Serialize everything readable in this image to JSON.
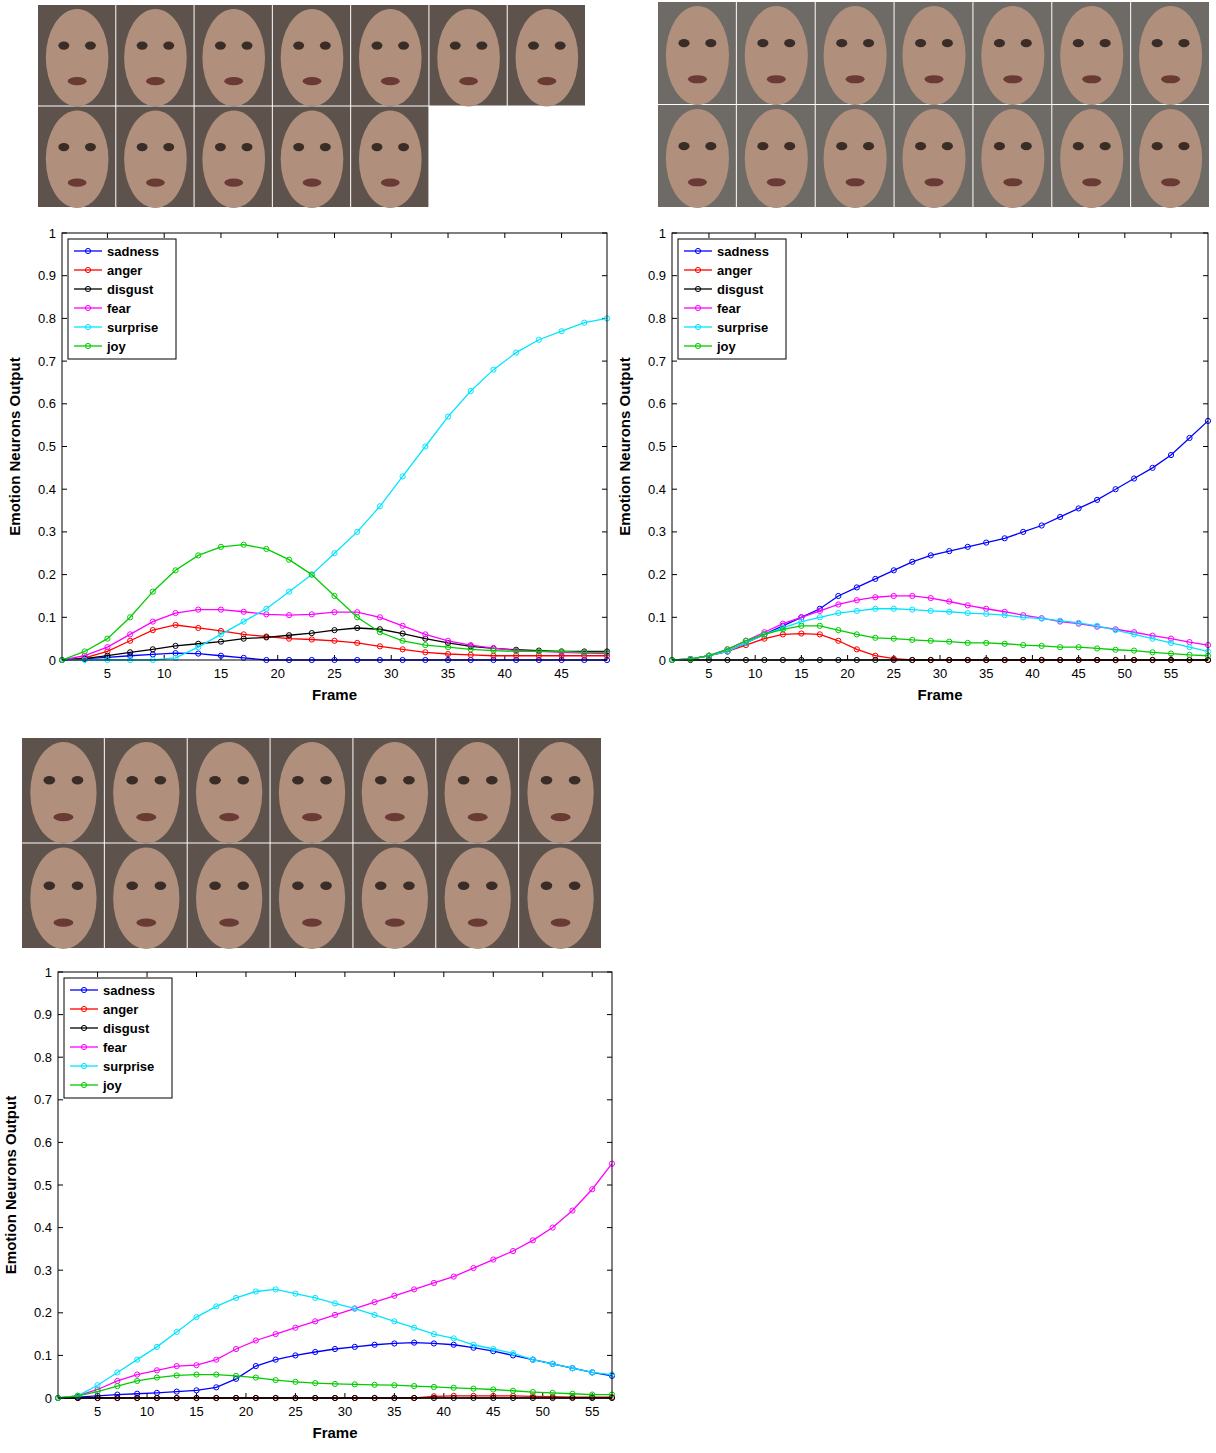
{
  "chart_data": [
    {
      "type": "line",
      "x_label": "Frame",
      "y_label": "Emotion Neurons Output",
      "legend": "upper left",
      "grid": false,
      "marker": "circle",
      "xlim": [
        1,
        49
      ],
      "ylim": [
        0,
        1
      ],
      "xticks": [
        5,
        10,
        15,
        20,
        25,
        30,
        35,
        40,
        45
      ],
      "yticks": [
        0,
        0.1,
        0.2,
        0.3,
        0.4,
        0.5,
        0.6,
        0.7,
        0.8,
        0.9,
        1
      ],
      "x": [
        1,
        3,
        5,
        7,
        9,
        11,
        13,
        15,
        17,
        19,
        21,
        23,
        25,
        27,
        29,
        31,
        33,
        35,
        37,
        39,
        41,
        43,
        45,
        47,
        49
      ],
      "series": [
        {
          "name": "sadness",
          "color": "#0000ff",
          "values": [
            0,
            0.003,
            0.006,
            0.01,
            0.013,
            0.016,
            0.015,
            0.01,
            0.005,
            0,
            0,
            0,
            0,
            0,
            0,
            0,
            0,
            0,
            0,
            0,
            0,
            0,
            0,
            0,
            0
          ]
        },
        {
          "name": "anger",
          "color": "#ff0000",
          "values": [
            0,
            0.005,
            0.02,
            0.045,
            0.07,
            0.082,
            0.075,
            0.068,
            0.06,
            0.055,
            0.05,
            0.048,
            0.045,
            0.04,
            0.032,
            0.025,
            0.018,
            0.014,
            0.012,
            0.01,
            0.01,
            0.01,
            0.01,
            0.01,
            0.01
          ]
        },
        {
          "name": "disgust",
          "color": "#000000",
          "values": [
            0,
            0.003,
            0.01,
            0.018,
            0.025,
            0.033,
            0.038,
            0.043,
            0.05,
            0.053,
            0.058,
            0.063,
            0.07,
            0.075,
            0.072,
            0.062,
            0.05,
            0.04,
            0.032,
            0.027,
            0.024,
            0.022,
            0.02,
            0.02,
            0.02
          ]
        },
        {
          "name": "fear",
          "color": "#ff00ff",
          "values": [
            0,
            0.01,
            0.03,
            0.06,
            0.09,
            0.11,
            0.118,
            0.118,
            0.113,
            0.107,
            0.105,
            0.107,
            0.112,
            0.112,
            0.1,
            0.08,
            0.06,
            0.045,
            0.035,
            0.028,
            0.022,
            0.02,
            0.018,
            0.016,
            0.015
          ]
        },
        {
          "name": "surprise",
          "color": "#00e5ff",
          "values": [
            0,
            0,
            0,
            0,
            0,
            0.005,
            0.03,
            0.06,
            0.09,
            0.12,
            0.16,
            0.2,
            0.25,
            0.3,
            0.36,
            0.43,
            0.5,
            0.57,
            0.63,
            0.68,
            0.72,
            0.75,
            0.77,
            0.79,
            0.8
          ]
        },
        {
          "name": "joy",
          "color": "#00cc00",
          "values": [
            0,
            0.02,
            0.05,
            0.1,
            0.16,
            0.21,
            0.245,
            0.265,
            0.27,
            0.26,
            0.235,
            0.2,
            0.15,
            0.1,
            0.065,
            0.045,
            0.035,
            0.03,
            0.025,
            0.022,
            0.02,
            0.02,
            0.02,
            0.018,
            0.018
          ]
        }
      ]
    },
    {
      "type": "line",
      "x_label": "Frame",
      "y_label": "Emotion Neurons Output",
      "legend": "upper left",
      "grid": false,
      "marker": "circle",
      "xlim": [
        1,
        59
      ],
      "ylim": [
        0,
        1
      ],
      "xticks": [
        5,
        10,
        15,
        20,
        25,
        30,
        35,
        40,
        45,
        50,
        55
      ],
      "yticks": [
        0,
        0.1,
        0.2,
        0.3,
        0.4,
        0.5,
        0.6,
        0.7,
        0.8,
        0.9,
        1
      ],
      "x": [
        1,
        3,
        5,
        7,
        9,
        11,
        13,
        15,
        17,
        19,
        21,
        23,
        25,
        27,
        29,
        31,
        33,
        35,
        37,
        39,
        41,
        43,
        45,
        47,
        49,
        51,
        53,
        55,
        57,
        59
      ],
      "series": [
        {
          "name": "sadness",
          "color": "#0000ff",
          "values": [
            0,
            0.002,
            0.01,
            0.02,
            0.04,
            0.06,
            0.08,
            0.1,
            0.12,
            0.15,
            0.17,
            0.19,
            0.21,
            0.23,
            0.245,
            0.255,
            0.265,
            0.275,
            0.285,
            0.3,
            0.315,
            0.335,
            0.355,
            0.375,
            0.4,
            0.425,
            0.45,
            0.48,
            0.52,
            0.56
          ]
        },
        {
          "name": "anger",
          "color": "#ff0000",
          "values": [
            0,
            0.002,
            0.01,
            0.02,
            0.035,
            0.05,
            0.06,
            0.062,
            0.06,
            0.045,
            0.025,
            0.01,
            0.003,
            0,
            0,
            0,
            0,
            0,
            0,
            0,
            0,
            0,
            0,
            0,
            0,
            0,
            0,
            0,
            0,
            0
          ]
        },
        {
          "name": "disgust",
          "color": "#000000",
          "values": [
            0,
            0,
            0,
            0,
            0,
            0,
            0,
            0,
            0,
            0,
            0,
            0,
            0,
            0,
            0,
            0,
            0,
            0,
            0,
            0,
            0,
            0,
            0,
            0,
            0,
            0,
            0,
            0,
            0,
            0
          ]
        },
        {
          "name": "fear",
          "color": "#ff00ff",
          "values": [
            0,
            0.002,
            0.01,
            0.025,
            0.045,
            0.065,
            0.085,
            0.1,
            0.115,
            0.13,
            0.14,
            0.147,
            0.15,
            0.15,
            0.145,
            0.137,
            0.128,
            0.12,
            0.113,
            0.105,
            0.098,
            0.09,
            0.085,
            0.078,
            0.072,
            0.065,
            0.057,
            0.05,
            0.042,
            0.035
          ]
        },
        {
          "name": "surprise",
          "color": "#00e5ff",
          "values": [
            0,
            0.002,
            0.01,
            0.02,
            0.04,
            0.06,
            0.075,
            0.09,
            0.1,
            0.11,
            0.115,
            0.12,
            0.12,
            0.118,
            0.115,
            0.113,
            0.11,
            0.108,
            0.105,
            0.1,
            0.097,
            0.092,
            0.087,
            0.08,
            0.07,
            0.06,
            0.05,
            0.04,
            0.03,
            0.02
          ]
        },
        {
          "name": "joy",
          "color": "#00cc00",
          "values": [
            0,
            0.002,
            0.01,
            0.025,
            0.045,
            0.06,
            0.072,
            0.08,
            0.08,
            0.07,
            0.06,
            0.052,
            0.05,
            0.047,
            0.045,
            0.043,
            0.04,
            0.04,
            0.038,
            0.035,
            0.033,
            0.03,
            0.03,
            0.027,
            0.024,
            0.022,
            0.018,
            0.015,
            0.012,
            0.01
          ]
        }
      ]
    },
    {
      "type": "line",
      "x_label": "Frame",
      "y_label": "Emotion Neurons Output",
      "legend": "upper left",
      "grid": false,
      "marker": "circle",
      "xlim": [
        1,
        57
      ],
      "ylim": [
        0,
        1
      ],
      "xticks": [
        5,
        10,
        15,
        20,
        25,
        30,
        35,
        40,
        45,
        50,
        55
      ],
      "yticks": [
        0,
        0.1,
        0.2,
        0.3,
        0.4,
        0.5,
        0.6,
        0.7,
        0.8,
        0.9,
        1
      ],
      "x": [
        1,
        3,
        5,
        7,
        9,
        11,
        13,
        15,
        17,
        19,
        21,
        23,
        25,
        27,
        29,
        31,
        33,
        35,
        37,
        39,
        41,
        43,
        45,
        47,
        49,
        51,
        53,
        55,
        57
      ],
      "series": [
        {
          "name": "sadness",
          "color": "#0000ff",
          "values": [
            0,
            0.002,
            0.005,
            0.008,
            0.01,
            0.012,
            0.015,
            0.018,
            0.025,
            0.045,
            0.075,
            0.09,
            0.1,
            0.108,
            0.115,
            0.12,
            0.125,
            0.128,
            0.13,
            0.128,
            0.125,
            0.118,
            0.11,
            0.1,
            0.09,
            0.08,
            0.07,
            0.06,
            0.052
          ]
        },
        {
          "name": "anger",
          "color": "#ff0000",
          "values": [
            0,
            0,
            0,
            0,
            0,
            0,
            0,
            0,
            0,
            0,
            0,
            0,
            0,
            0,
            0,
            0,
            0,
            0,
            0,
            0.004,
            0.005,
            0.005,
            0.005,
            0.005,
            0.004,
            0.003,
            0.002,
            0.002,
            0.002
          ]
        },
        {
          "name": "disgust",
          "color": "#000000",
          "values": [
            0,
            0,
            0,
            0,
            0,
            0,
            0,
            0,
            0,
            0,
            0,
            0,
            0,
            0,
            0,
            0,
            0,
            0,
            0,
            0,
            0,
            0,
            0,
            0,
            0,
            0,
            0,
            0,
            0
          ]
        },
        {
          "name": "fear",
          "color": "#ff00ff",
          "values": [
            0,
            0.005,
            0.02,
            0.04,
            0.055,
            0.065,
            0.075,
            0.077,
            0.09,
            0.115,
            0.135,
            0.15,
            0.165,
            0.18,
            0.195,
            0.21,
            0.225,
            0.24,
            0.255,
            0.27,
            0.285,
            0.305,
            0.325,
            0.345,
            0.37,
            0.4,
            0.44,
            0.49,
            0.55
          ]
        },
        {
          "name": "surprise",
          "color": "#00e5ff",
          "values": [
            0,
            0.005,
            0.03,
            0.06,
            0.09,
            0.12,
            0.155,
            0.19,
            0.215,
            0.235,
            0.25,
            0.255,
            0.245,
            0.235,
            0.222,
            0.21,
            0.195,
            0.18,
            0.165,
            0.15,
            0.14,
            0.125,
            0.115,
            0.105,
            0.09,
            0.08,
            0.07,
            0.06,
            0.055
          ]
        },
        {
          "name": "joy",
          "color": "#00cc00",
          "values": [
            0,
            0.005,
            0.015,
            0.028,
            0.04,
            0.048,
            0.053,
            0.055,
            0.055,
            0.052,
            0.048,
            0.042,
            0.038,
            0.035,
            0.033,
            0.032,
            0.031,
            0.03,
            0.028,
            0.026,
            0.024,
            0.022,
            0.02,
            0.017,
            0.014,
            0.012,
            0.01,
            0.008,
            0.008
          ]
        }
      ]
    }
  ]
}
